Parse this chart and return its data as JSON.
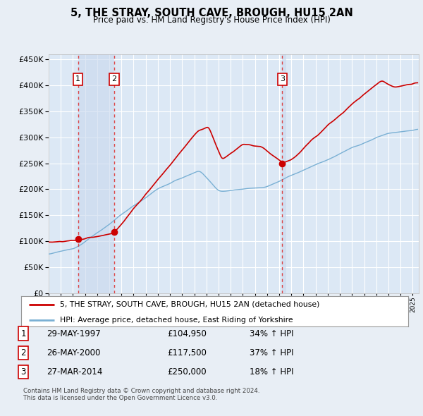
{
  "title": "5, THE STRAY, SOUTH CAVE, BROUGH, HU15 2AN",
  "subtitle": "Price paid vs. HM Land Registry's House Price Index (HPI)",
  "background_color": "#e8eef5",
  "plot_bg_color": "#dce8f5",
  "grid_color": "#ffffff",
  "highlight_color": "#c8d8ee",
  "ylim": [
    0,
    460000
  ],
  "yticks": [
    0,
    50000,
    100000,
    150000,
    200000,
    250000,
    300000,
    350000,
    400000,
    450000
  ],
  "xlim_start": 1995.0,
  "xlim_end": 2025.5,
  "transactions": [
    {
      "num": 1,
      "date_str": "29-MAY-1997",
      "year": 1997.42,
      "price": 104950,
      "pct": "34%",
      "dir": "↑"
    },
    {
      "num": 2,
      "date_str": "26-MAY-2000",
      "year": 2000.4,
      "price": 117500,
      "pct": "37%",
      "dir": "↑"
    },
    {
      "num": 3,
      "date_str": "27-MAR-2014",
      "year": 2014.25,
      "price": 250000,
      "pct": "18%",
      "dir": "↑"
    }
  ],
  "legend_label_red": "5, THE STRAY, SOUTH CAVE, BROUGH, HU15 2AN (detached house)",
  "legend_label_blue": "HPI: Average price, detached house, East Riding of Yorkshire",
  "footer1": "Contains HM Land Registry data © Crown copyright and database right 2024.",
  "footer2": "This data is licensed under the Open Government Licence v3.0.",
  "red_color": "#cc0000",
  "blue_color": "#7ab0d4",
  "dashed_color": "#dd3333"
}
